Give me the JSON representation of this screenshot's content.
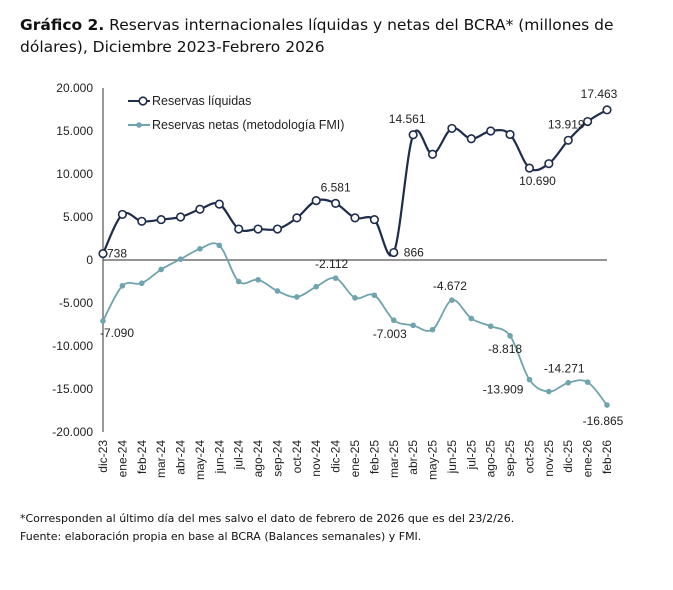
{
  "title": {
    "bold": "Gráfico 2.",
    "text": " Reservas internacionales líquidas y netas del BCRA* (millones de dólares), Diciembre 2023-Febrero 2026"
  },
  "footnotes": [
    "*Corresponden al último día del mes salvo el dato de febrero de 2026 que es del 23/2/26.",
    "Fuente: elaboración propia en base al BCRA (Balances semanales) y FMI."
  ],
  "chart_data": {
    "type": "line",
    "categories": [
      "dic-23",
      "ene-24",
      "feb-24",
      "mar-24",
      "abr-24",
      "may-24",
      "jun-24",
      "jul-24",
      "ago-24",
      "sep-24",
      "oct-24",
      "nov-24",
      "dic-24",
      "ene-25",
      "feb-25",
      "mar-25",
      "abr-25",
      "may-25",
      "jun-25",
      "jul-25",
      "ago-25",
      "sep-25",
      "oct-25",
      "nov-25",
      "dic-25",
      "ene-26",
      "feb-26"
    ],
    "ylim": [
      -20000,
      20000
    ],
    "yticks": [
      20000,
      15000,
      10000,
      5000,
      0,
      -5000,
      -10000,
      -15000,
      -20000
    ],
    "ytick_labels": [
      "20.000",
      "15.000",
      "10.000",
      "5.000",
      "0",
      "-5.000",
      "-10.000",
      "-15.000",
      "-20.000"
    ],
    "legend_position": "top-left",
    "grid": false,
    "series": [
      {
        "name": "Reservas líquidas",
        "color": "#1f2d4d",
        "marker": "hollow-circle",
        "values": [
          738,
          5300,
          4500,
          4700,
          5000,
          5900,
          6500,
          3600,
          3600,
          3600,
          4900,
          6900,
          6581,
          4900,
          4700,
          866,
          14561,
          12300,
          15300,
          14100,
          15000,
          14600,
          10690,
          11200,
          13919,
          16100,
          17463
        ]
      },
      {
        "name": "Reservas netas (metodología FMI)",
        "color": "#6fa3ad",
        "marker": "filled-circle",
        "values": [
          -7090,
          -3000,
          -2700,
          -1100,
          100,
          1300,
          1700,
          -2500,
          -2300,
          -3600,
          -4300,
          -3100,
          -2112,
          -4400,
          -4100,
          -7003,
          -7600,
          -8100,
          -4672,
          -6800,
          -7700,
          -8818,
          -13909,
          -15300,
          -14271,
          -14200,
          -16865
        ]
      }
    ],
    "annotations": [
      {
        "series": 0,
        "category": "dic-23",
        "text": "738"
      },
      {
        "series": 0,
        "category": "dic-24",
        "text": "6.581"
      },
      {
        "series": 0,
        "category": "mar-25",
        "text": "866"
      },
      {
        "series": 0,
        "category": "abr-25",
        "text": "14.561"
      },
      {
        "series": 0,
        "category": "oct-25",
        "text": "10.690"
      },
      {
        "series": 0,
        "category": "dic-25",
        "text": "13.919"
      },
      {
        "series": 0,
        "category": "feb-26",
        "text": "17.463"
      },
      {
        "series": 1,
        "category": "dic-23",
        "text": "-7.090"
      },
      {
        "series": 1,
        "category": "dic-24",
        "text": "-2.112"
      },
      {
        "series": 1,
        "category": "mar-25",
        "text": "-7.003"
      },
      {
        "series": 1,
        "category": "jun-25",
        "text": "-4.672"
      },
      {
        "series": 1,
        "category": "sep-25",
        "text": "-8.818"
      },
      {
        "series": 1,
        "category": "oct-25",
        "text": "-13.909"
      },
      {
        "series": 1,
        "category": "dic-25",
        "text": "-14.271"
      },
      {
        "series": 1,
        "category": "feb-26",
        "text": "-16.865"
      }
    ]
  }
}
